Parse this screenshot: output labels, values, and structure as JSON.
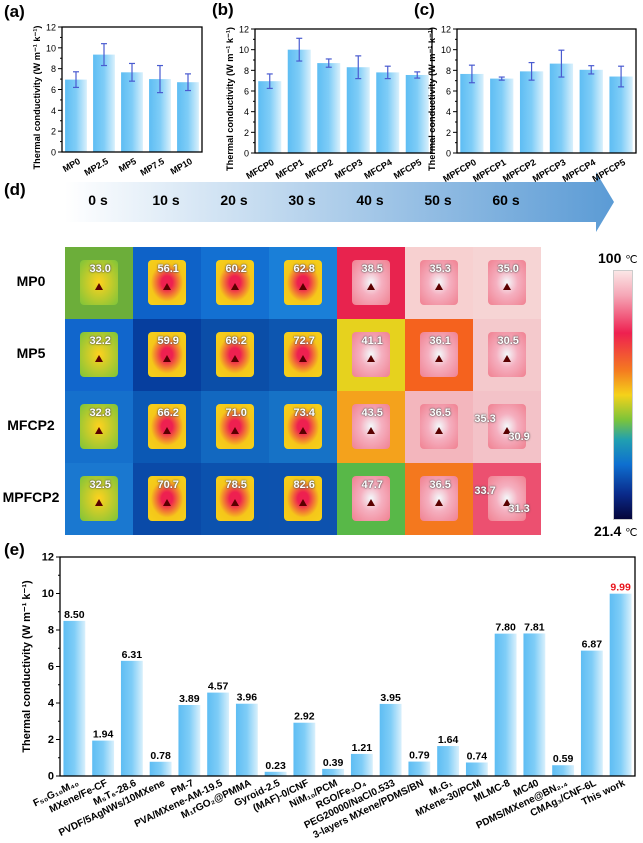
{
  "panels": {
    "a": "(a)",
    "b": "(b)",
    "c": "(c)",
    "d": "(d)",
    "e": "(e)"
  },
  "ylabel": "Thermal conductivity (W m⁻¹ k⁻¹)",
  "chart_data": [
    {
      "id": "a",
      "type": "bar",
      "categories": [
        "MP0",
        "MP2.5",
        "MP5",
        "MP7.5",
        "MP10"
      ],
      "values": [
        6.95,
        9.35,
        7.65,
        7.0,
        6.7
      ],
      "errors": [
        0.75,
        1.05,
        0.85,
        1.3,
        0.8
      ],
      "ylabel": "Thermal conductivity (W m⁻¹ k⁻¹)",
      "ylim": [
        0,
        12
      ],
      "yticks": [
        "0",
        "2",
        "4",
        "6",
        "8",
        "10",
        "12"
      ]
    },
    {
      "id": "b",
      "type": "bar",
      "categories": [
        "MFCP0",
        "MFCP1",
        "MFCP2",
        "MFCP3",
        "MFCP4",
        "MFCP5"
      ],
      "values": [
        6.95,
        10.0,
        8.7,
        8.3,
        7.8,
        7.55
      ],
      "errors": [
        0.7,
        1.1,
        0.4,
        1.1,
        0.6,
        0.3
      ],
      "ylabel": "Thermal conductivity (W m⁻¹ k⁻¹)",
      "ylim": [
        0,
        12
      ],
      "yticks": [
        "0",
        "2",
        "4",
        "6",
        "8",
        "10",
        "12"
      ]
    },
    {
      "id": "c",
      "type": "bar",
      "categories": [
        "MPFCP0",
        "MPFCP1",
        "MPFCP2",
        "MPFCP3",
        "MPFCP4",
        "MPFCP5"
      ],
      "values": [
        7.65,
        7.2,
        7.9,
        8.65,
        8.05,
        7.4
      ],
      "errors": [
        0.85,
        0.15,
        0.85,
        1.3,
        0.4,
        1.0
      ],
      "ylabel": "Thermal conductivity (W m⁻¹ k⁻¹)",
      "ylim": [
        0,
        12
      ],
      "yticks": [
        "0",
        "2",
        "4",
        "6",
        "8",
        "10",
        "12"
      ]
    },
    {
      "id": "e",
      "type": "bar",
      "categories": [
        "F₅₀G₁₀M₄₀",
        "MXene/Fe-CF",
        "M₅T₆-28.6",
        "PVDF/5AgNWs/10MXene",
        "PM-7",
        "PVA/MXene-AM-19.5",
        "M₁rGO₂@PMMA",
        "Gyroid-2.5",
        "(MAF)-0/CNF",
        "NiM₁₀/PCM",
        "RGO/Fe₃O₄",
        "PEG20000/NaCl0.533",
        "3-layers MXene/PDMS/BN",
        "M₁G₁",
        "MXene-30/PCM",
        "MLMC-8",
        "MC40",
        "PDMS/MXene@BN₂.₄",
        "CMAg₃/CNF-6L",
        "This work"
      ],
      "values": [
        8.5,
        1.94,
        6.31,
        0.78,
        3.89,
        4.57,
        3.96,
        0.23,
        2.92,
        0.39,
        1.21,
        3.95,
        0.79,
        1.64,
        0.74,
        7.8,
        7.81,
        0.59,
        6.87,
        9.99
      ],
      "value_labels": [
        "8.50",
        "1.94",
        "6.31",
        "0.78",
        "3.89",
        "4.57",
        "3.96",
        "0.23",
        "2.92",
        "0.39",
        "1.21",
        "3.95",
        "0.79",
        "1.64",
        "0.74",
        "7.80",
        "7.81",
        "0.59",
        "6.87",
        "9.99"
      ],
      "highlight_color": "#e8141b",
      "ylabel": "Thermal conductivity (W m⁻¹ k⁻¹)",
      "ylim": [
        0,
        12
      ],
      "yticks": [
        "0",
        "2",
        "4",
        "6",
        "8",
        "10",
        "12"
      ]
    }
  ],
  "thermal": {
    "times": [
      "0 s",
      "10 s",
      "20 s",
      "30 s",
      "40 s",
      "50 s",
      "60 s"
    ],
    "rows": [
      {
        "label": "MP0",
        "temps": [
          [
            "33.0"
          ],
          [
            "56.1"
          ],
          [
            "60.2"
          ],
          [
            "62.8"
          ],
          [
            "38.5"
          ],
          [
            "35.3"
          ],
          [
            "35.0"
          ]
        ]
      },
      {
        "label": "MP5",
        "temps": [
          [
            "32.2"
          ],
          [
            "59.9"
          ],
          [
            "68.2"
          ],
          [
            "72.7"
          ],
          [
            "41.1"
          ],
          [
            "36.1"
          ],
          [
            "30.5"
          ]
        ]
      },
      {
        "label": "MFCP2",
        "temps": [
          [
            "32.8"
          ],
          [
            "66.2"
          ],
          [
            "71.0"
          ],
          [
            "73.4"
          ],
          [
            "43.5"
          ],
          [
            "36.5"
          ],
          [
            "35.3",
            "30.9"
          ]
        ]
      },
      {
        "label": "MPFCP2",
        "temps": [
          [
            "32.5"
          ],
          [
            "70.7"
          ],
          [
            "78.5"
          ],
          [
            "82.6"
          ],
          [
            "47.7"
          ],
          [
            "36.5"
          ],
          [
            "33.7",
            "31.3"
          ]
        ]
      }
    ],
    "colorbar": {
      "max": "100",
      "min": "21.4",
      "unit": "℃"
    }
  }
}
